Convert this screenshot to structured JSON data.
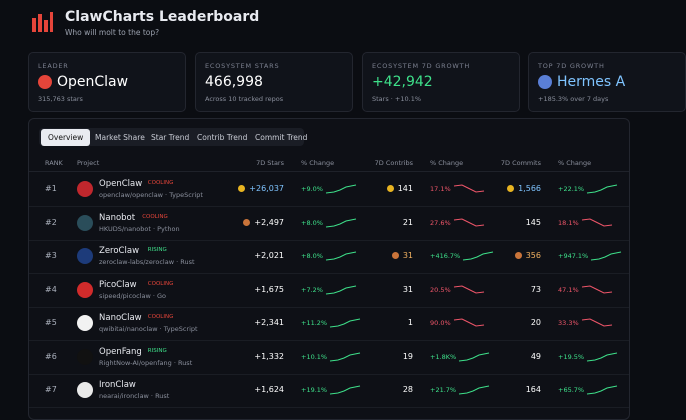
{
  "header": {
    "title": "ClawCharts Leaderboard",
    "subtitle": "Who will molt to the top?"
  },
  "cards": [
    {
      "label": "LEADER",
      "value": "OpenClaw",
      "sub": "315,763 stars"
    },
    {
      "label": "ECOSYSTEM STARS",
      "value": "466,998",
      "sub": "Across 10 tracked repos"
    },
    {
      "label": "ECOSYSTEM 7D GROWTH",
      "value": "+42,942",
      "sub": "Stars · +10.1%"
    },
    {
      "label": "TOP 7D GROWTH",
      "value": "Hermes A",
      "sub": "+185.3% over 7 days"
    }
  ],
  "tabs": [
    "Overview",
    "Market Share",
    "Star Trend",
    "Contrib Trend",
    "Commit Trend"
  ],
  "table": {
    "columns": [
      "RANK",
      "Project",
      "7D Stars",
      "% Change",
      "7D Contribs",
      "% Change",
      "7D Commits",
      "% Change"
    ],
    "rows": [
      {
        "rank": "#1",
        "name": "OpenClaw",
        "status": "COOLING",
        "repo": "openclaw/openclaw · TypeScript",
        "stars": "+26,037",
        "stars_change": "+9.0%",
        "contribs": "141",
        "contribs_change": "17.1%",
        "commits": "1,566",
        "commits_change": "+22.1%",
        "stars_medal": "gold",
        "contribs_medal": "gold",
        "commits_medal": "gold"
      },
      {
        "rank": "#2",
        "name": "Nanobot",
        "status": "COOLING",
        "repo": "HKUDS/nanobot · Python",
        "stars": "+2,497",
        "stars_change": "+8.0%",
        "contribs": "21",
        "contribs_change": "27.6%",
        "commits": "145",
        "commits_change": "18.1%",
        "stars_medal": "bronze"
      },
      {
        "rank": "#3",
        "name": "ZeroClaw",
        "status": "RISING",
        "repo": "zeroclaw-labs/zeroclaw · Rust",
        "stars": "+2,021",
        "stars_change": "+8.0%",
        "contribs": "31",
        "contribs_change": "+416.7%",
        "commits": "356",
        "commits_change": "+947.1%",
        "contribs_medal": "bronze",
        "commits_medal": "bronze"
      },
      {
        "rank": "#4",
        "name": "PicoClaw",
        "status": "COOLING",
        "repo": "sipeed/picoclaw · Go",
        "stars": "+1,675",
        "stars_change": "+7.2%",
        "contribs": "31",
        "contribs_change": "20.5%",
        "commits": "73",
        "commits_change": "47.1%"
      },
      {
        "rank": "#5",
        "name": "NanoClaw",
        "status": "COOLING",
        "repo": "qwibitai/nanoclaw · TypeScript",
        "stars": "+2,341",
        "stars_change": "+11.2%",
        "contribs": "1",
        "contribs_change": "90.0%",
        "commits": "20",
        "commits_change": "33.3%"
      },
      {
        "rank": "#6",
        "name": "OpenFang",
        "status": "RISING",
        "repo": "RightNow-AI/openfang · Rust",
        "stars": "+1,332",
        "stars_change": "+10.1%",
        "contribs": "19",
        "contribs_change": "+1.8K%",
        "commits": "49",
        "commits_change": "+19.5%"
      },
      {
        "rank": "#7",
        "name": "IronClaw",
        "repo": "nearai/ironclaw · Rust",
        "stars": "+1,624",
        "stars_change": "+19.1%",
        "contribs": "28",
        "contribs_change": "+21.7%",
        "commits": "164",
        "commits_change": "+65.7%"
      }
    ]
  }
}
